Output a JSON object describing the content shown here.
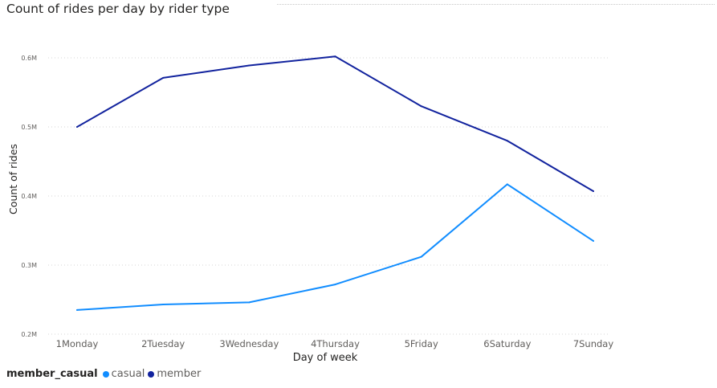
{
  "chart_data": {
    "type": "line",
    "title": "Count of rides per day by rider type",
    "xlabel": "Day of week",
    "ylabel": "Count of rides",
    "categories": [
      "1Monday",
      "2Tuesday",
      "3Wednesday",
      "4Thursday",
      "5Friday",
      "6Saturday",
      "7Sunday"
    ],
    "y_ticks": [
      0.2,
      0.3,
      0.4,
      0.5,
      0.6
    ],
    "y_tick_labels": [
      "0.2M",
      "0.3M",
      "0.4M",
      "0.5M",
      "0.6M"
    ],
    "ylim": [
      0.2,
      0.6
    ],
    "grid": true,
    "legend_title": "member_casual",
    "legend_position": "bottom-left",
    "series": [
      {
        "name": "casual",
        "color": "#118dff",
        "values": [
          0.235,
          0.243,
          0.246,
          0.272,
          0.312,
          0.417,
          0.335
        ]
      },
      {
        "name": "member",
        "color": "#12239e",
        "values": [
          0.5,
          0.571,
          0.589,
          0.602,
          0.53,
          0.48,
          0.407
        ]
      }
    ]
  }
}
